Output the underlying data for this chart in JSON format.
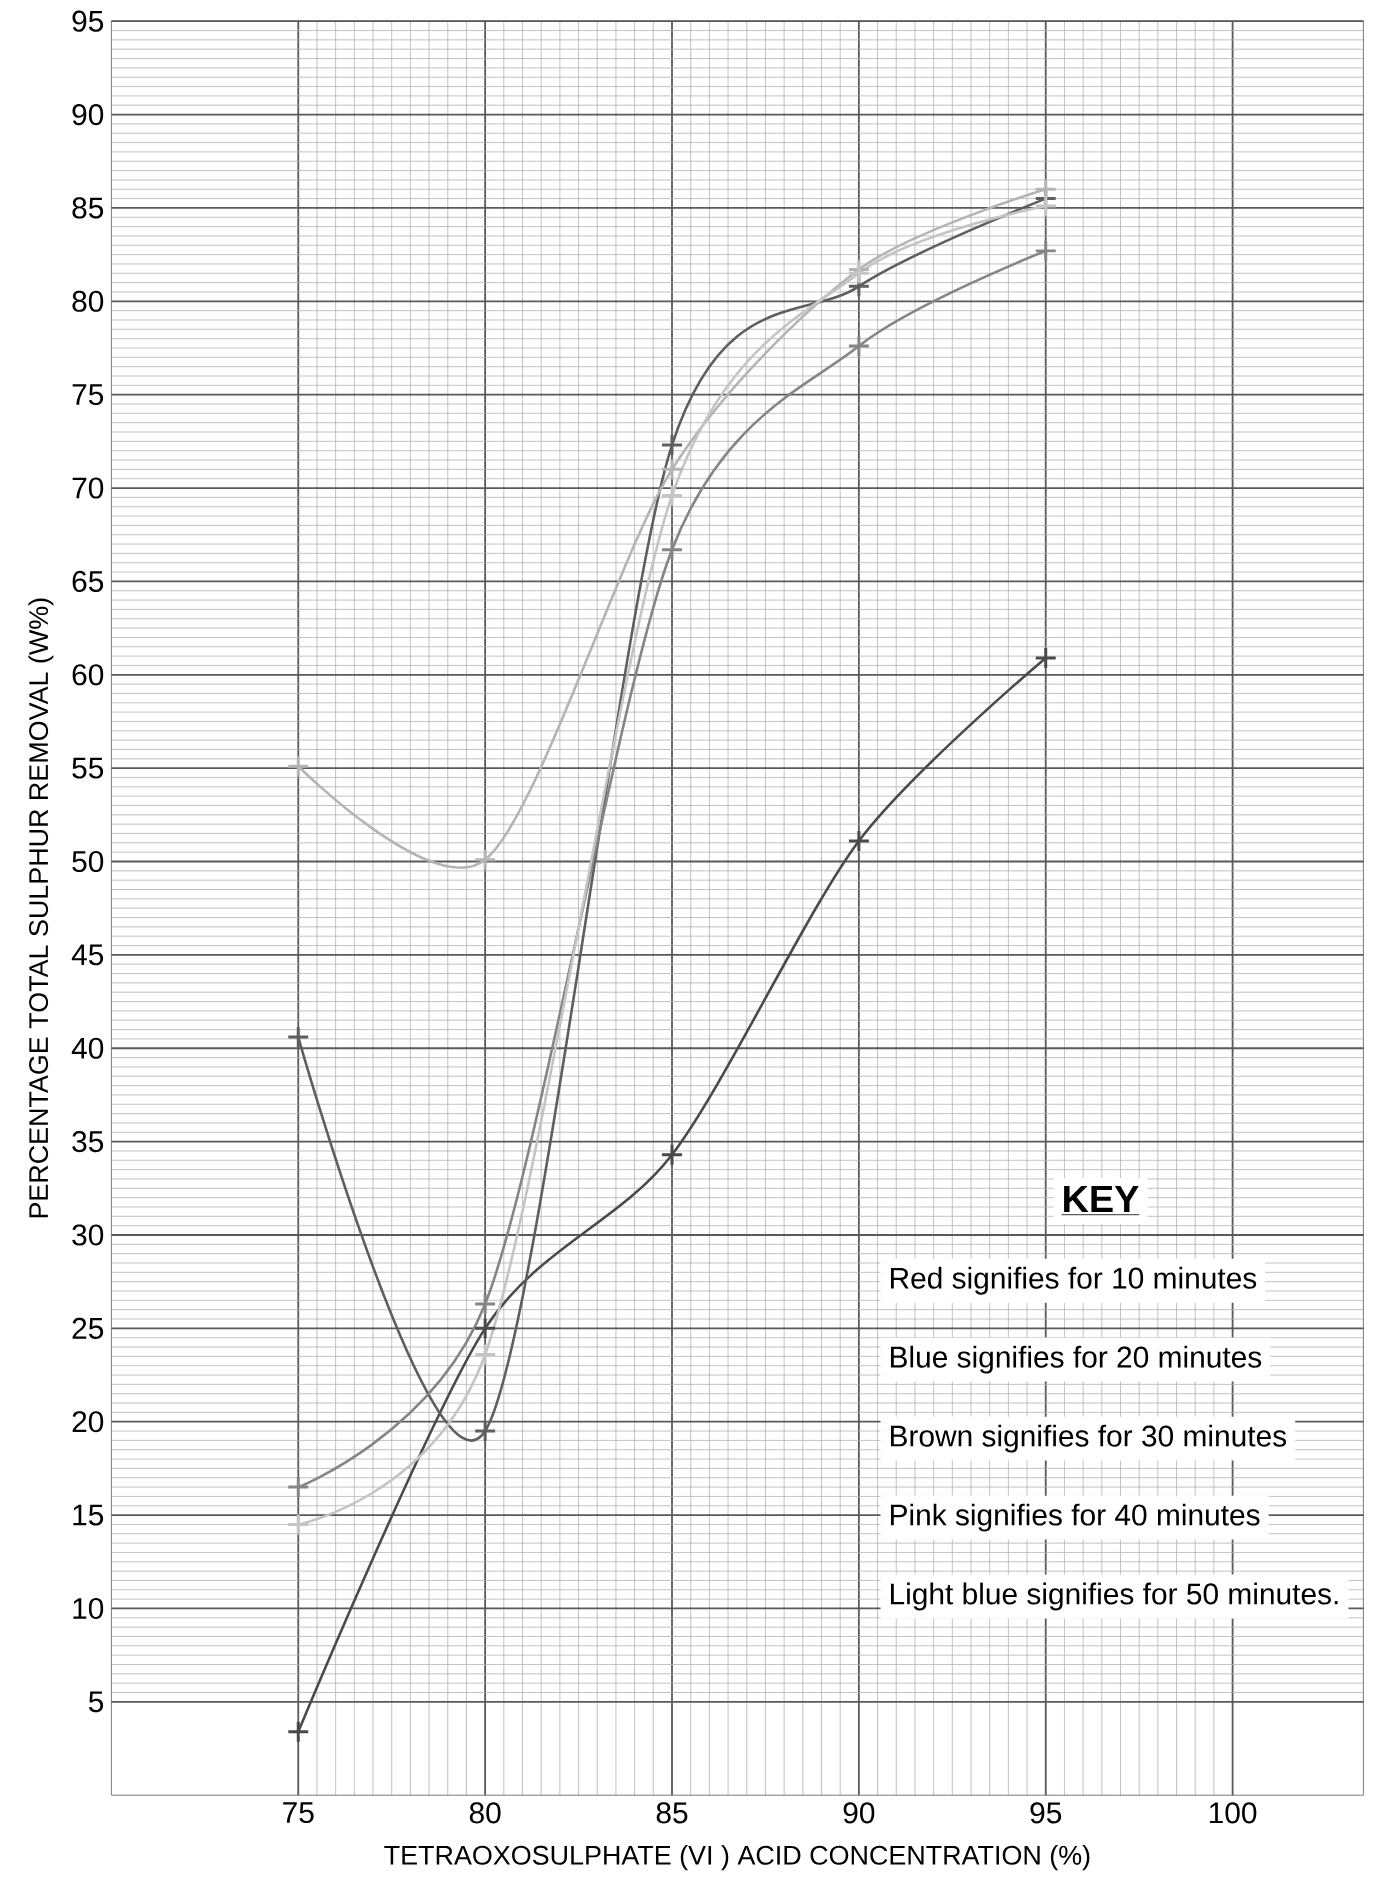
{
  "chart_data": {
    "type": "line",
    "xlabel": "TETRAOXOSULPHATE (VI ) ACID CONCENTRATION (%)",
    "ylabel": "PERCENTAGE TOTAL SULPHUR REMOVAL (W%)",
    "x": [
      75,
      80,
      85,
      90,
      95
    ],
    "series": [
      {
        "color": "#4a4a4a",
        "values": [
          3.4,
          25.0,
          34.3,
          51.1,
          60.9
        ]
      },
      {
        "color": "#5e5e5e",
        "values": [
          40.6,
          19.5,
          72.3,
          80.8,
          85.5
        ]
      },
      {
        "color": "#858585",
        "values": [
          16.5,
          26.3,
          66.7,
          77.6,
          82.7
        ]
      },
      {
        "color": "#b4b4b4",
        "values": [
          55.1,
          50.1,
          71.0,
          81.7,
          86.0
        ]
      },
      {
        "color": "#c4c4c4",
        "values": [
          14.5,
          23.6,
          69.6,
          81.5,
          85.1
        ]
      }
    ],
    "xlim": [
      70,
      103.5
    ],
    "ylim": [
      0,
      95
    ],
    "xticks": [
      75,
      80,
      85,
      90,
      95,
      100
    ],
    "yticks": [
      5,
      10,
      15,
      20,
      25,
      30,
      35,
      40,
      45,
      50,
      55,
      60,
      65,
      70,
      75,
      80,
      85,
      90,
      95
    ],
    "grid": true,
    "marker": "cross",
    "line_style": "solid",
    "annotations": [
      "KEY",
      "Red signifies for 10 minutes",
      "Blue signifies for 20 minutes",
      "Brown signifies for 30 minutes",
      "Pink signifies for 40 minutes",
      "Light blue signifies for 50 minutes."
    ]
  }
}
